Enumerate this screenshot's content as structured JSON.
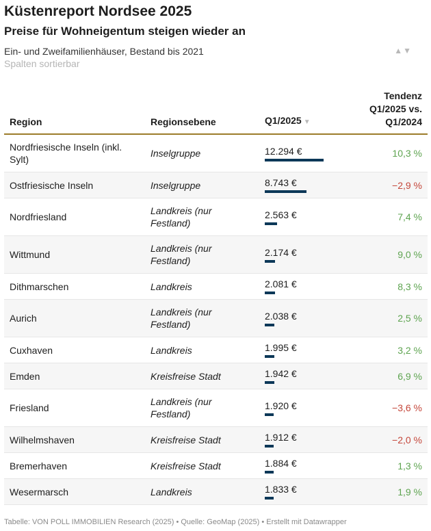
{
  "title": "Küstenreport Nordsee 2025",
  "subtitle": "Preise für Wohneigentum steigen wieder an",
  "description": "Ein- und Zweifamilienhäuser, Bestand bis 2021",
  "sort_hint": "Spalten sortierbar",
  "sort_icons": "▲▼",
  "columns": {
    "region": "Region",
    "level": "Regionsebene",
    "q1": "Q1/2025",
    "q1_sort": "▼",
    "trend_line1": "Tendenz",
    "trend_line2": "Q1/2025 vs.",
    "trend_line3": "Q1/2024"
  },
  "bar_color": "#0c3858",
  "positive_color": "#5da34f",
  "negative_color": "#c4463a",
  "max_price": 12294,
  "rows": [
    {
      "region": "Nordfriesische Inseln (inkl. Sylt)",
      "level": "Inselgruppe",
      "price": "12.294 €",
      "price_num": 12294,
      "trend": "10,3 %",
      "dir": "pos",
      "tall": true
    },
    {
      "region": "Ostfriesische Inseln",
      "level": "Inselgruppe",
      "price": "8.743 €",
      "price_num": 8743,
      "trend": "−2,9 %",
      "dir": "neg",
      "tall": false
    },
    {
      "region": "Nordfriesland",
      "level": "Landkreis (nur Festland)",
      "price": "2.563 €",
      "price_num": 2563,
      "trend": "7,4 %",
      "dir": "pos",
      "tall": true
    },
    {
      "region": "Wittmund",
      "level": "Landkreis (nur Festland)",
      "price": "2.174 €",
      "price_num": 2174,
      "trend": "9,0 %",
      "dir": "pos",
      "tall": true
    },
    {
      "region": "Dithmarschen",
      "level": "Landkreis",
      "price": "2.081 €",
      "price_num": 2081,
      "trend": "8,3 %",
      "dir": "pos",
      "tall": false
    },
    {
      "region": "Aurich",
      "level": "Landkreis (nur Festland)",
      "price": "2.038 €",
      "price_num": 2038,
      "trend": "2,5 %",
      "dir": "pos",
      "tall": true
    },
    {
      "region": "Cuxhaven",
      "level": "Landkreis",
      "price": "1.995 €",
      "price_num": 1995,
      "trend": "3,2 %",
      "dir": "pos",
      "tall": false
    },
    {
      "region": "Emden",
      "level": "Kreisfreise Stadt",
      "price": "1.942 €",
      "price_num": 1942,
      "trend": "6,9 %",
      "dir": "pos",
      "tall": false
    },
    {
      "region": "Friesland",
      "level": "Landkreis (nur Festland)",
      "price": "1.920 €",
      "price_num": 1920,
      "trend": "−3,6 %",
      "dir": "neg",
      "tall": true
    },
    {
      "region": "Wilhelmshaven",
      "level": "Kreisfreise Stadt",
      "price": "1.912 €",
      "price_num": 1912,
      "trend": "−2,0 %",
      "dir": "neg",
      "tall": false
    },
    {
      "region": "Bremerhaven",
      "level": "Kreisfreise Stadt",
      "price": "1.884 €",
      "price_num": 1884,
      "trend": "1,3 %",
      "dir": "pos",
      "tall": false
    },
    {
      "region": "Wesermarsch",
      "level": "Landkreis",
      "price": "1.833 €",
      "price_num": 1833,
      "trend": "1,9 %",
      "dir": "pos",
      "tall": false
    }
  ],
  "footer": "Tabelle: VON POLL IMMOBILIEN Research (2025) • Quelle: GeoMap (2025) • Erstellt mit Datawrapper"
}
